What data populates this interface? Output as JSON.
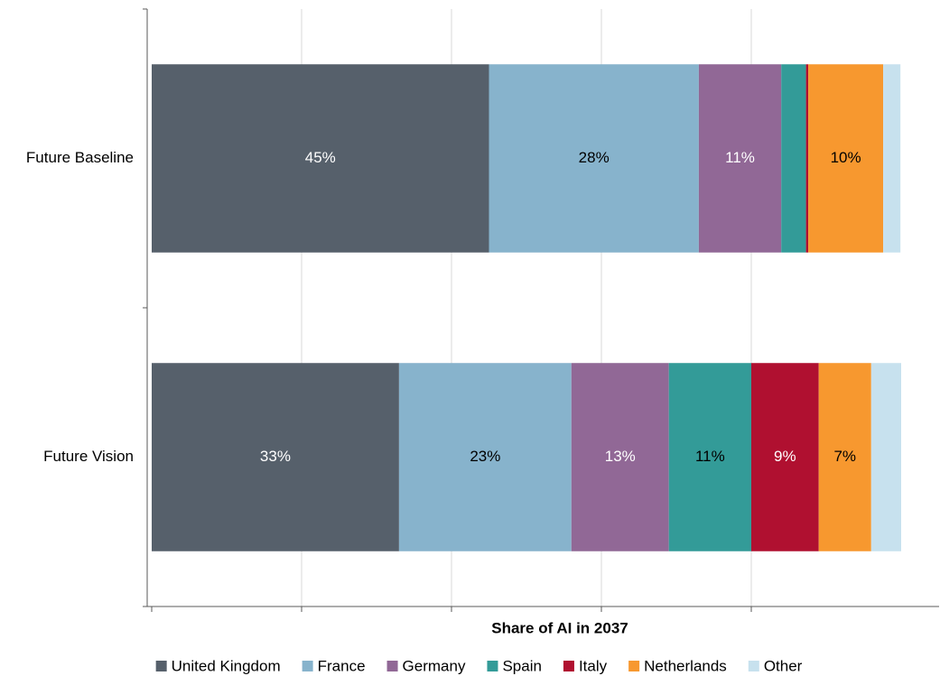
{
  "chart_data": {
    "type": "stacked_barh",
    "xlabel": "Share of AI in 2037",
    "categories": [
      "Future Baseline",
      "Future Vision"
    ],
    "series": [
      {
        "name": "United Kingdom",
        "color": "#56606b",
        "label_color": "#ffffff",
        "values": [
          45,
          33
        ],
        "value_labels": [
          "45%",
          "33%"
        ]
      },
      {
        "name": "France",
        "color": "#87b3cc",
        "label_color": "#000000",
        "values": [
          28,
          23
        ],
        "value_labels": [
          "28%",
          "23%"
        ]
      },
      {
        "name": "Germany",
        "color": "#916896",
        "label_color": "#ffffff",
        "values": [
          11,
          13
        ],
        "value_labels": [
          "11%",
          "13%"
        ]
      },
      {
        "name": "Spain",
        "color": "#339b98",
        "label_color": "#000000",
        "values": [
          3.3,
          11
        ],
        "value_labels": [
          null,
          "11%"
        ]
      },
      {
        "name": "Italy",
        "color": "#b01030",
        "label_color": "#ffffff",
        "values": [
          0.3,
          9
        ],
        "value_labels": [
          null,
          "9%"
        ]
      },
      {
        "name": "Netherlands",
        "color": "#f7982f",
        "label_color": "#000000",
        "values": [
          10,
          7
        ],
        "value_labels": [
          "10%",
          "7%"
        ]
      },
      {
        "name": "Other",
        "color": "#c7e1ee",
        "label_color": "#000000",
        "values": [
          2.3,
          4
        ],
        "value_labels": [
          null,
          null
        ]
      }
    ],
    "xlim": [
      0,
      100
    ],
    "xticks": [
      0,
      20,
      40,
      60,
      80
    ],
    "grid": true,
    "legend": "bottom"
  }
}
